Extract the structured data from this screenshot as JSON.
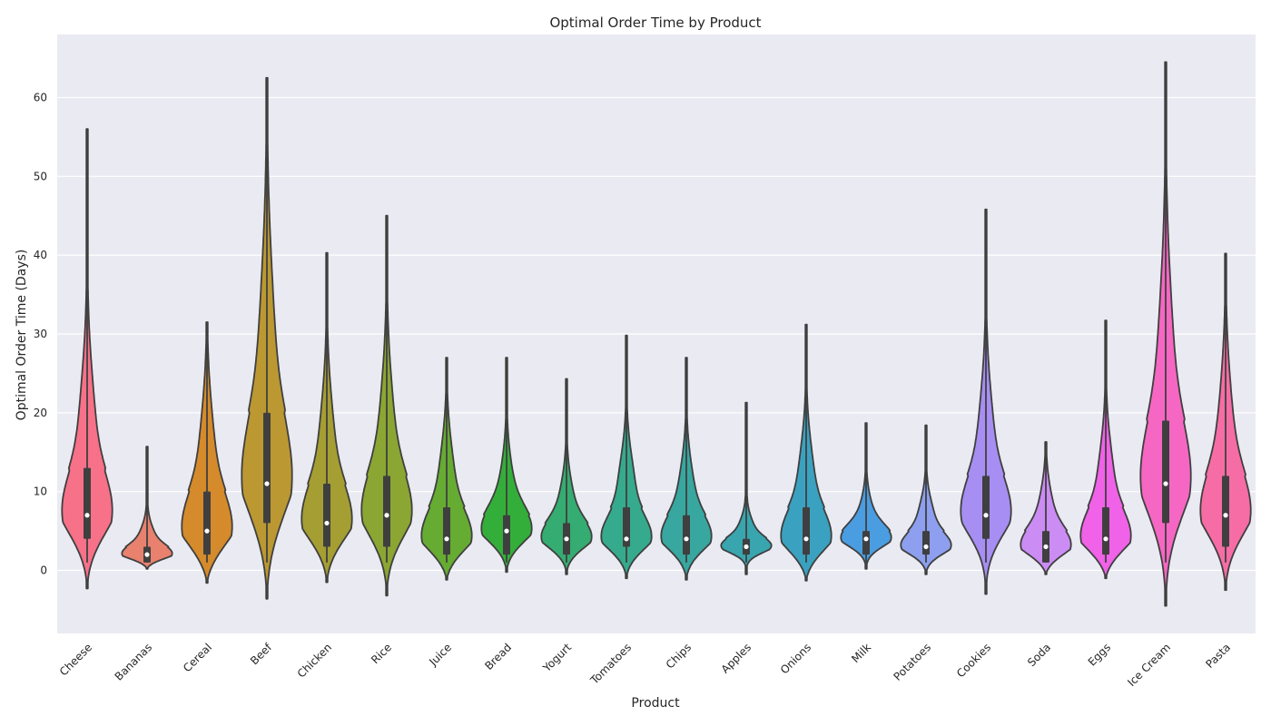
{
  "chart_data": {
    "type": "violin",
    "title": "Optimal Order Time by Product",
    "xlabel": "Product",
    "ylabel": "Optimal Order Time (Days)",
    "ylim": [
      -8,
      68
    ],
    "yticks": [
      0,
      10,
      20,
      30,
      40,
      50,
      60
    ],
    "grid": true,
    "legend": "none",
    "colors": {
      "plot_background": "#EAEAF2",
      "grid": "#FFFFFF",
      "outline": "#3F3F3F"
    },
    "categories": [
      "Cheese",
      "Bananas",
      "Cereal",
      "Beef",
      "Chicken",
      "Rice",
      "Juice",
      "Bread",
      "Yogurt",
      "Tomatoes",
      "Chips",
      "Apples",
      "Onions",
      "Milk",
      "Potatoes",
      "Cookies",
      "Soda",
      "Eggs",
      "Ice Cream",
      "Pasta"
    ],
    "series": [
      {
        "category": "Cheese",
        "color": "#F77189",
        "min": 1,
        "q1": 4,
        "median": 7,
        "q3": 13,
        "max": 56,
        "kde_low": -2.3,
        "kde_high": 56
      },
      {
        "category": "Bananas",
        "color": "#E8816E",
        "min": 1,
        "q1": 1,
        "median": 2,
        "q3": 3,
        "max": 15.7,
        "kde_low": 0.2,
        "kde_high": 15.7
      },
      {
        "category": "Cereal",
        "color": "#D58B2B",
        "min": 1,
        "q1": 2,
        "median": 5,
        "q3": 10,
        "max": 31.5,
        "kde_low": -1.6,
        "kde_high": 31.5
      },
      {
        "category": "Beef",
        "color": "#BB9832",
        "min": 1,
        "q1": 6,
        "median": 11,
        "q3": 20,
        "max": 62.5,
        "kde_low": -3.6,
        "kde_high": 62.5
      },
      {
        "category": "Chicken",
        "color": "#A59E32",
        "min": 1,
        "q1": 3,
        "median": 6,
        "q3": 11,
        "max": 40.3,
        "kde_low": -1.5,
        "kde_high": 40.3
      },
      {
        "category": "Rice",
        "color": "#8BA632",
        "min": 1,
        "q1": 3,
        "median": 7,
        "q3": 12,
        "max": 45,
        "kde_low": -3.2,
        "kde_high": 45
      },
      {
        "category": "Juice",
        "color": "#66AB32",
        "min": 1,
        "q1": 2,
        "median": 4,
        "q3": 8,
        "max": 27,
        "kde_low": -1.2,
        "kde_high": 27
      },
      {
        "category": "Bread",
        "color": "#34AE3A",
        "min": 1,
        "q1": 2,
        "median": 5,
        "q3": 7,
        "max": 27,
        "kde_low": -0.2,
        "kde_high": 27
      },
      {
        "category": "Yogurt",
        "color": "#35AC71",
        "min": 1,
        "q1": 2,
        "median": 4,
        "q3": 6,
        "max": 24.3,
        "kde_low": -0.5,
        "kde_high": 24.3
      },
      {
        "category": "Tomatoes",
        "color": "#36AA8D",
        "min": 1,
        "q1": 3,
        "median": 4,
        "q3": 8,
        "max": 29.8,
        "kde_low": -1,
        "kde_high": 29.8
      },
      {
        "category": "Chips",
        "color": "#37A7A0",
        "min": 1,
        "q1": 2,
        "median": 4,
        "q3": 7,
        "max": 27,
        "kde_low": -1.2,
        "kde_high": 27
      },
      {
        "category": "Apples",
        "color": "#38A5AF",
        "min": 1,
        "q1": 2,
        "median": 3,
        "q3": 4,
        "max": 21.3,
        "kde_low": -0.5,
        "kde_high": 21.3
      },
      {
        "category": "Onions",
        "color": "#3AA2C0",
        "min": 1,
        "q1": 2,
        "median": 4,
        "q3": 8,
        "max": 31.2,
        "kde_low": -1.3,
        "kde_high": 31.2
      },
      {
        "category": "Milk",
        "color": "#4A9DE0",
        "min": 1,
        "q1": 2,
        "median": 4,
        "q3": 5,
        "max": 18.7,
        "kde_low": 0.2,
        "kde_high": 18.7
      },
      {
        "category": "Potatoes",
        "color": "#8D9FEE",
        "min": 1,
        "q1": 2,
        "median": 3,
        "q3": 5,
        "max": 18.4,
        "kde_low": -0.5,
        "kde_high": 18.4
      },
      {
        "category": "Cookies",
        "color": "#A78EF2",
        "min": 1,
        "q1": 4,
        "median": 7,
        "q3": 12,
        "max": 45.8,
        "kde_low": -3,
        "kde_high": 45.8
      },
      {
        "category": "Soda",
        "color": "#CB8CF3",
        "min": 1,
        "q1": 1,
        "median": 3,
        "q3": 5,
        "max": 16.3,
        "kde_low": -0.5,
        "kde_high": 16.3
      },
      {
        "category": "Eggs",
        "color": "#F062E7",
        "min": 1,
        "q1": 2,
        "median": 4,
        "q3": 8,
        "max": 31.7,
        "kde_low": -1,
        "kde_high": 31.7
      },
      {
        "category": "Ice Cream",
        "color": "#F567C3",
        "min": 1,
        "q1": 6,
        "median": 11,
        "q3": 19,
        "max": 64.5,
        "kde_low": -4.5,
        "kde_high": 64.5
      },
      {
        "category": "Pasta",
        "color": "#F66DA5",
        "min": 1,
        "q1": 3,
        "median": 7,
        "q3": 12,
        "max": 40.2,
        "kde_low": -2.5,
        "kde_high": 40.2
      }
    ]
  }
}
